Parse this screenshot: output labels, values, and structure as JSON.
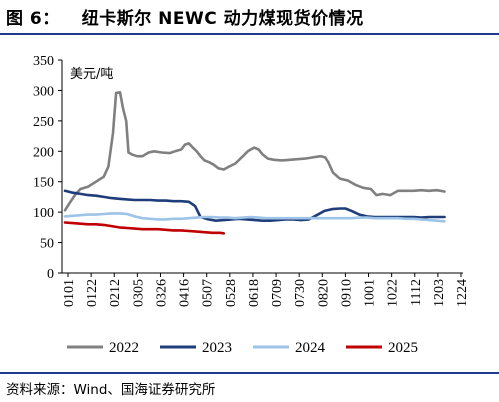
{
  "header": {
    "figure_label": "图 6：",
    "title_text": "纽卡斯尔 NEWC 动力煤现货价情况"
  },
  "footer": {
    "source": "资料来源：Wind、国海证券研究所"
  },
  "chart_data": {
    "type": "line",
    "title": "纽卡斯尔 NEWC 动力煤现货价情况",
    "ylabel": "美元/吨",
    "ylim": [
      0,
      350
    ],
    "yticks": [
      0,
      50,
      100,
      150,
      200,
      250,
      300,
      350
    ],
    "x_tick_labels": [
      "0101",
      "0122",
      "0212",
      "0305",
      "0326",
      "0416",
      "0507",
      "0528",
      "0618",
      "0709",
      "0730",
      "0820",
      "0910",
      "1001",
      "1022",
      "1112",
      "1203",
      "1224"
    ],
    "x_range": [
      1,
      52
    ],
    "legend_position": "bottom",
    "series": [
      {
        "name": "2022",
        "color": "#808080",
        "points": [
          [
            1,
            103
          ],
          [
            1.6,
            115
          ],
          [
            2.4,
            130
          ],
          [
            3,
            138
          ],
          [
            4,
            142
          ],
          [
            5,
            150
          ],
          [
            6,
            158
          ],
          [
            6.6,
            175
          ],
          [
            7.2,
            230
          ],
          [
            7.6,
            296
          ],
          [
            8.1,
            297
          ],
          [
            8.5,
            270
          ],
          [
            8.9,
            250
          ],
          [
            9.2,
            198
          ],
          [
            9.6,
            195
          ],
          [
            10.3,
            192
          ],
          [
            11,
            192
          ],
          [
            11.8,
            198
          ],
          [
            12.5,
            200
          ],
          [
            13.5,
            198
          ],
          [
            14.5,
            197
          ],
          [
            15.2,
            200
          ],
          [
            16,
            203
          ],
          [
            16.5,
            211
          ],
          [
            17,
            213
          ],
          [
            17.5,
            206
          ],
          [
            18,
            200
          ],
          [
            18.5,
            192
          ],
          [
            19,
            185
          ],
          [
            19.6,
            182
          ],
          [
            20.2,
            178
          ],
          [
            20.8,
            172
          ],
          [
            21.5,
            170
          ],
          [
            22.2,
            175
          ],
          [
            23,
            180
          ],
          [
            23.8,
            190
          ],
          [
            24.6,
            200
          ],
          [
            25.4,
            206
          ],
          [
            26,
            203
          ],
          [
            26.5,
            195
          ],
          [
            27.2,
            188
          ],
          [
            28,
            186
          ],
          [
            29,
            185
          ],
          [
            30,
            186
          ],
          [
            31,
            187
          ],
          [
            32,
            188
          ],
          [
            33,
            190
          ],
          [
            34,
            192
          ],
          [
            34.6,
            190
          ],
          [
            35,
            182
          ],
          [
            35.6,
            165
          ],
          [
            36.5,
            155
          ],
          [
            37.5,
            152
          ],
          [
            38.5,
            145
          ],
          [
            39.5,
            140
          ],
          [
            40.5,
            138
          ],
          [
            41.2,
            128
          ],
          [
            42,
            130
          ],
          [
            43,
            128
          ],
          [
            44,
            135
          ],
          [
            45,
            135
          ],
          [
            46,
            135
          ],
          [
            47,
            136
          ],
          [
            48,
            135
          ],
          [
            49,
            136
          ],
          [
            50,
            134
          ]
        ]
      },
      {
        "name": "2023",
        "color": "#1f3d7a",
        "points": [
          [
            1,
            135
          ],
          [
            2,
            132
          ],
          [
            3,
            130
          ],
          [
            4,
            128
          ],
          [
            5,
            127
          ],
          [
            6,
            125
          ],
          [
            7,
            123
          ],
          [
            8,
            122
          ],
          [
            9,
            121
          ],
          [
            10,
            120
          ],
          [
            11,
            120
          ],
          [
            12,
            120
          ],
          [
            13,
            119
          ],
          [
            14,
            119
          ],
          [
            15,
            118
          ],
          [
            16,
            118
          ],
          [
            17,
            117
          ],
          [
            17.8,
            110
          ],
          [
            18.5,
            92
          ],
          [
            19.5,
            88
          ],
          [
            20.5,
            86
          ],
          [
            21.5,
            87
          ],
          [
            22.5,
            88
          ],
          [
            23.5,
            89
          ],
          [
            24.5,
            88
          ],
          [
            25.5,
            87
          ],
          [
            26.5,
            86
          ],
          [
            27.5,
            86
          ],
          [
            28.5,
            87
          ],
          [
            29.5,
            88
          ],
          [
            30.5,
            88
          ],
          [
            31.5,
            87
          ],
          [
            32.5,
            88
          ],
          [
            33.5,
            95
          ],
          [
            34.5,
            102
          ],
          [
            35.5,
            105
          ],
          [
            36.5,
            106
          ],
          [
            37.2,
            106
          ],
          [
            38,
            102
          ],
          [
            39,
            96
          ],
          [
            40,
            93
          ],
          [
            41,
            92
          ],
          [
            42,
            92
          ],
          [
            43,
            92
          ],
          [
            44,
            92
          ],
          [
            45,
            92
          ],
          [
            46,
            92
          ],
          [
            47,
            91
          ],
          [
            48,
            92
          ],
          [
            49,
            92
          ],
          [
            50,
            92
          ]
        ]
      },
      {
        "name": "2024",
        "color": "#9dc3e6",
        "points": [
          [
            1,
            93
          ],
          [
            2,
            94
          ],
          [
            3,
            95
          ],
          [
            4,
            96
          ],
          [
            5,
            96
          ],
          [
            6,
            97
          ],
          [
            7,
            98
          ],
          [
            8,
            98
          ],
          [
            9,
            97
          ],
          [
            10,
            93
          ],
          [
            11,
            90
          ],
          [
            12,
            89
          ],
          [
            13,
            88
          ],
          [
            14,
            88
          ],
          [
            15,
            89
          ],
          [
            16,
            89
          ],
          [
            17,
            90
          ],
          [
            18,
            91
          ],
          [
            19,
            92
          ],
          [
            20,
            92
          ],
          [
            21,
            91
          ],
          [
            22,
            91
          ],
          [
            23,
            90
          ],
          [
            24,
            91
          ],
          [
            25,
            92
          ],
          [
            26,
            91
          ],
          [
            27,
            90
          ],
          [
            28,
            90
          ],
          [
            29,
            90
          ],
          [
            30,
            90
          ],
          [
            31,
            90
          ],
          [
            32,
            90
          ],
          [
            33,
            90
          ],
          [
            34,
            90
          ],
          [
            35,
            90
          ],
          [
            36,
            90
          ],
          [
            37,
            90
          ],
          [
            38,
            90
          ],
          [
            39,
            91
          ],
          [
            40,
            91
          ],
          [
            41,
            90
          ],
          [
            42,
            90
          ],
          [
            43,
            90
          ],
          [
            44,
            90
          ],
          [
            45,
            89
          ],
          [
            46,
            89
          ],
          [
            47,
            88
          ],
          [
            48,
            87
          ],
          [
            49,
            86
          ],
          [
            50,
            85
          ]
        ]
      },
      {
        "name": "2025",
        "color": "#c00000",
        "points": [
          [
            1,
            83
          ],
          [
            2,
            82
          ],
          [
            3,
            81
          ],
          [
            4,
            80
          ],
          [
            5,
            80
          ],
          [
            6,
            79
          ],
          [
            7,
            77
          ],
          [
            8,
            75
          ],
          [
            9,
            74
          ],
          [
            10,
            73
          ],
          [
            11,
            72
          ],
          [
            12,
            72
          ],
          [
            13,
            72
          ],
          [
            14,
            71
          ],
          [
            15,
            70
          ],
          [
            16,
            70
          ],
          [
            17,
            69
          ],
          [
            18,
            68
          ],
          [
            19,
            67
          ],
          [
            20,
            66
          ],
          [
            21,
            66
          ],
          [
            21.5,
            65
          ]
        ]
      }
    ]
  }
}
